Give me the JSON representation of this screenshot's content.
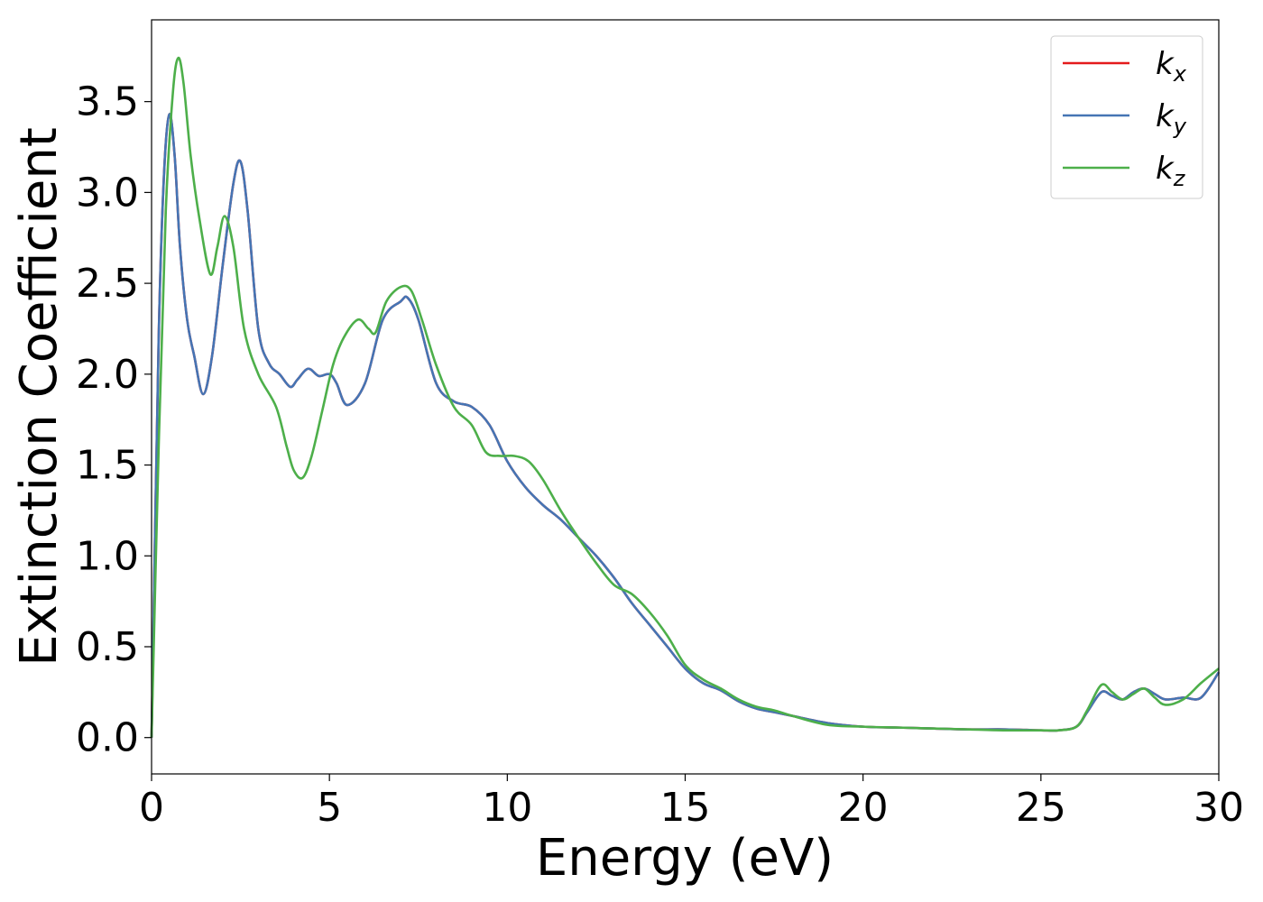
{
  "chart_data": {
    "type": "line",
    "xlabel": "Energy (eV)",
    "ylabel": "Extinction Coefficient",
    "xlim": [
      0,
      30
    ],
    "ylim": [
      -0.2,
      3.95
    ],
    "xticks": [
      "0",
      "5",
      "10",
      "15",
      "20",
      "25",
      "30"
    ],
    "yticks": [
      "0.0",
      "0.5",
      "1.0",
      "1.5",
      "2.0",
      "2.5",
      "3.0",
      "3.5"
    ],
    "grid": false,
    "legend_position": "top-right",
    "series": [
      {
        "name": "k_x",
        "label_main": "k",
        "label_sub": "x",
        "color": "#e41a1c",
        "x": [
          0,
          0.2,
          0.35,
          0.5,
          0.65,
          0.8,
          1.0,
          1.2,
          1.45,
          1.7,
          2.0,
          2.3,
          2.5,
          2.7,
          3.0,
          3.3,
          3.6,
          3.9,
          4.1,
          4.4,
          4.7,
          5.0,
          5.2,
          5.5,
          6.0,
          6.5,
          7.0,
          7.2,
          7.5,
          8.0,
          8.5,
          9.0,
          9.5,
          10.0,
          10.5,
          11.0,
          11.5,
          12.0,
          12.5,
          13.0,
          13.5,
          14.0,
          14.5,
          15.0,
          15.5,
          16.0,
          16.5,
          17.0,
          17.5,
          18.0,
          19.0,
          20.0,
          21.0,
          22.0,
          23.0,
          24.0,
          25.0,
          25.5,
          26.0,
          26.3,
          26.7,
          27.0,
          27.3,
          27.6,
          27.9,
          28.2,
          28.5,
          29.0,
          29.5,
          30.0
        ],
        "y": [
          0.0,
          2.2,
          3.1,
          3.43,
          3.2,
          2.7,
          2.3,
          2.1,
          1.89,
          2.1,
          2.6,
          3.05,
          3.17,
          2.9,
          2.25,
          2.06,
          2.0,
          1.93,
          1.97,
          2.03,
          1.99,
          2.0,
          1.95,
          1.83,
          1.95,
          2.3,
          2.4,
          2.42,
          2.3,
          1.95,
          1.85,
          1.82,
          1.72,
          1.52,
          1.38,
          1.28,
          1.2,
          1.1,
          1.0,
          0.88,
          0.74,
          0.62,
          0.5,
          0.38,
          0.3,
          0.26,
          0.2,
          0.16,
          0.14,
          0.12,
          0.08,
          0.06,
          0.055,
          0.05,
          0.045,
          0.045,
          0.04,
          0.04,
          0.06,
          0.14,
          0.25,
          0.23,
          0.21,
          0.25,
          0.27,
          0.24,
          0.21,
          0.22,
          0.22,
          0.36
        ]
      },
      {
        "name": "k_y",
        "label_main": "k",
        "label_sub": "y",
        "color": "#4575b4",
        "x": [
          0,
          0.2,
          0.35,
          0.5,
          0.65,
          0.8,
          1.0,
          1.2,
          1.45,
          1.7,
          2.0,
          2.3,
          2.5,
          2.7,
          3.0,
          3.3,
          3.6,
          3.9,
          4.1,
          4.4,
          4.7,
          5.0,
          5.2,
          5.5,
          6.0,
          6.5,
          7.0,
          7.2,
          7.5,
          8.0,
          8.5,
          9.0,
          9.5,
          10.0,
          10.5,
          11.0,
          11.5,
          12.0,
          12.5,
          13.0,
          13.5,
          14.0,
          14.5,
          15.0,
          15.5,
          16.0,
          16.5,
          17.0,
          17.5,
          18.0,
          19.0,
          20.0,
          21.0,
          22.0,
          23.0,
          24.0,
          25.0,
          25.5,
          26.0,
          26.3,
          26.7,
          27.0,
          27.3,
          27.6,
          27.9,
          28.2,
          28.5,
          29.0,
          29.5,
          30.0
        ],
        "y": [
          0.0,
          2.2,
          3.1,
          3.43,
          3.2,
          2.7,
          2.3,
          2.1,
          1.89,
          2.1,
          2.6,
          3.05,
          3.17,
          2.9,
          2.25,
          2.06,
          2.0,
          1.93,
          1.97,
          2.03,
          1.99,
          2.0,
          1.95,
          1.83,
          1.95,
          2.3,
          2.4,
          2.42,
          2.3,
          1.95,
          1.85,
          1.82,
          1.72,
          1.52,
          1.38,
          1.28,
          1.2,
          1.1,
          1.0,
          0.88,
          0.74,
          0.62,
          0.5,
          0.38,
          0.3,
          0.26,
          0.2,
          0.16,
          0.14,
          0.12,
          0.08,
          0.06,
          0.055,
          0.05,
          0.045,
          0.045,
          0.04,
          0.04,
          0.06,
          0.14,
          0.25,
          0.23,
          0.21,
          0.25,
          0.27,
          0.24,
          0.21,
          0.22,
          0.22,
          0.36
        ]
      },
      {
        "name": "k_z",
        "label_main": "k",
        "label_sub": "z",
        "color": "#4daf4a",
        "x": [
          0,
          0.2,
          0.4,
          0.6,
          0.75,
          0.9,
          1.1,
          1.35,
          1.65,
          1.85,
          2.05,
          2.3,
          2.6,
          3.0,
          3.5,
          3.8,
          4.0,
          4.25,
          4.5,
          4.8,
          5.1,
          5.4,
          5.8,
          6.1,
          6.3,
          6.6,
          7.0,
          7.3,
          7.6,
          8.0,
          8.5,
          9.0,
          9.4,
          9.8,
          10.2,
          10.6,
          11.0,
          11.5,
          12.0,
          12.5,
          13.0,
          13.5,
          14.0,
          14.5,
          15.0,
          15.5,
          16.0,
          16.5,
          17.0,
          17.5,
          18.0,
          19.0,
          20.0,
          21.0,
          22.0,
          23.0,
          24.0,
          25.0,
          25.5,
          26.0,
          26.3,
          26.7,
          27.0,
          27.3,
          27.6,
          27.9,
          28.2,
          28.5,
          29.0,
          29.5,
          30.0
        ],
        "y": [
          0.0,
          1.6,
          2.9,
          3.55,
          3.74,
          3.6,
          3.2,
          2.85,
          2.55,
          2.7,
          2.87,
          2.7,
          2.25,
          2.0,
          1.82,
          1.6,
          1.47,
          1.43,
          1.55,
          1.8,
          2.05,
          2.2,
          2.3,
          2.25,
          2.23,
          2.4,
          2.48,
          2.46,
          2.3,
          2.05,
          1.82,
          1.72,
          1.57,
          1.55,
          1.55,
          1.52,
          1.42,
          1.25,
          1.1,
          0.96,
          0.84,
          0.79,
          0.69,
          0.56,
          0.4,
          0.32,
          0.27,
          0.21,
          0.17,
          0.15,
          0.12,
          0.07,
          0.06,
          0.055,
          0.05,
          0.045,
          0.04,
          0.04,
          0.04,
          0.06,
          0.15,
          0.29,
          0.25,
          0.21,
          0.24,
          0.27,
          0.22,
          0.18,
          0.21,
          0.3,
          0.38
        ]
      }
    ]
  }
}
